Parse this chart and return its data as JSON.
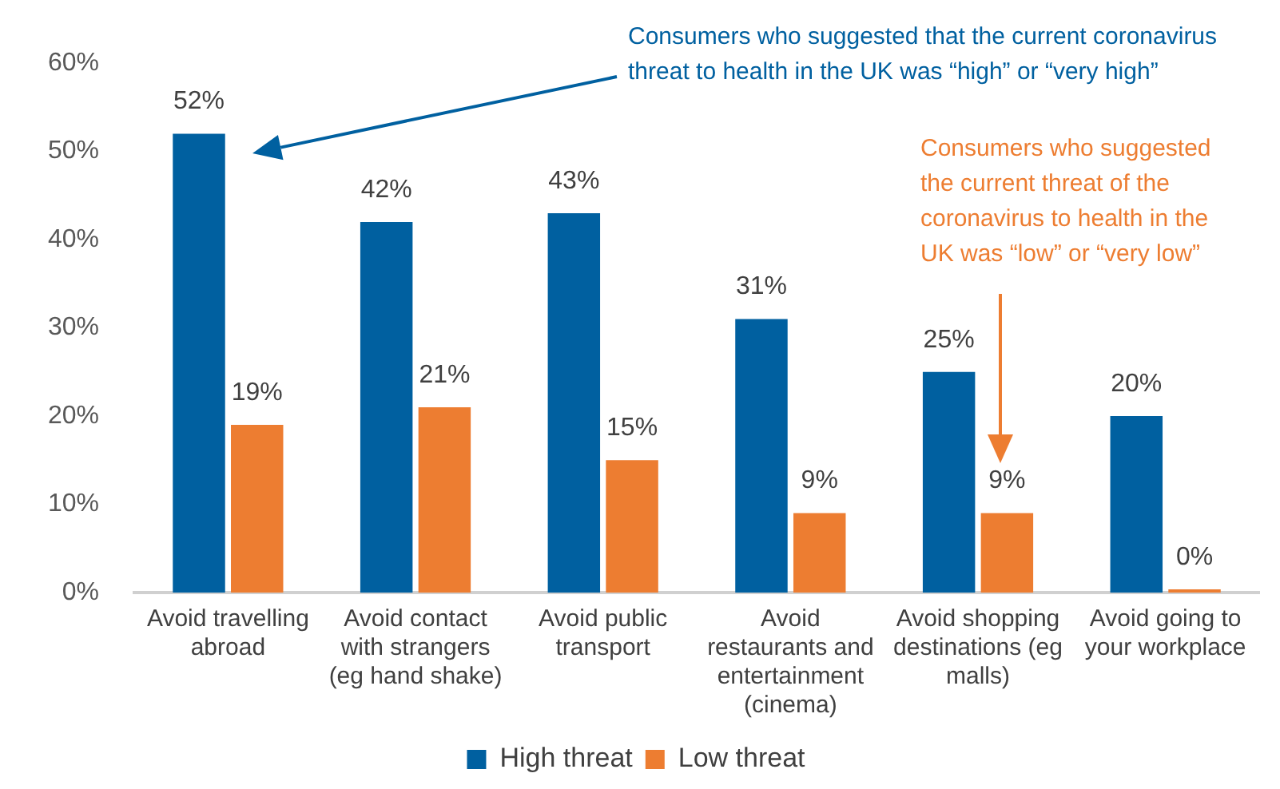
{
  "chart_data": {
    "type": "bar",
    "categories": [
      "Avoid travelling abroad",
      "Avoid contact with strangers (eg hand shake)",
      "Avoid public transport",
      "Avoid restaurants and entertainment (cinema)",
      "Avoid shopping destinations (eg malls)",
      "Avoid going to your workplace"
    ],
    "series": [
      {
        "name": "High threat",
        "color": "#0060a0",
        "values": [
          52,
          42,
          43,
          31,
          25,
          20
        ],
        "value_labels": [
          "52%",
          "42%",
          "43%",
          "31%",
          "25%",
          "20%"
        ]
      },
      {
        "name": "Low threat",
        "color": "#ed7d31",
        "values": [
          19,
          21,
          15,
          9,
          9,
          0
        ],
        "value_labels": [
          "19%",
          "21%",
          "15%",
          "9%",
          "9%",
          "0%"
        ]
      }
    ],
    "ylim": [
      0,
      60
    ],
    "yticks": [
      {
        "value": 0,
        "label": "0%"
      },
      {
        "value": 10,
        "label": "10%"
      },
      {
        "value": 20,
        "label": "20%"
      },
      {
        "value": 30,
        "label": "30%"
      },
      {
        "value": 40,
        "label": "40%"
      },
      {
        "value": 50,
        "label": "50%"
      },
      {
        "value": 60,
        "label": "60%"
      }
    ],
    "grid": false,
    "legend": "bottom",
    "annotations": [
      "Consumers who suggested that the current coronavirus threat to health in the UK was “high” or “very high”",
      "Consumers who suggested the current threat of the coronavirus to health in the UK was “low” or “very low”"
    ]
  }
}
